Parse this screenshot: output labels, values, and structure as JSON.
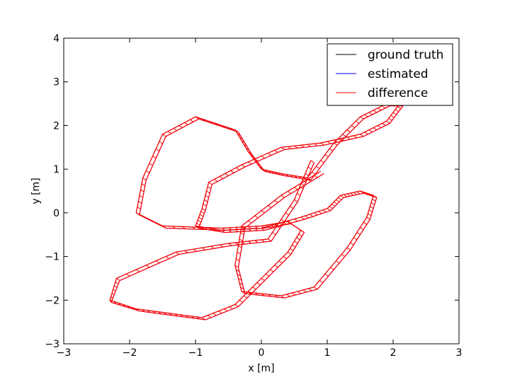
{
  "chart_data": {
    "type": "line",
    "title": "",
    "xlabel": "x [m]",
    "ylabel": "y [m]",
    "xlim": [
      -3,
      3
    ],
    "ylim": [
      -3,
      4
    ],
    "xticks": [
      -3,
      -2,
      -1,
      0,
      1,
      2,
      3
    ],
    "yticks": [
      -3,
      -2,
      -1,
      0,
      1,
      2,
      3,
      4
    ],
    "xtick_labels": [
      "−3",
      "−2",
      "−1",
      "0",
      "1",
      "2",
      "3"
    ],
    "ytick_labels": [
      "−3",
      "−2",
      "−1",
      "0",
      "1",
      "2",
      "3",
      "4"
    ],
    "grid": false,
    "legend_position": "top-right",
    "colors": {
      "ground_truth": "#000000",
      "estimated": "#0000ff",
      "difference": "#ff0000"
    },
    "series": [
      {
        "name": "ground truth",
        "x": [
          0.75,
          0.5,
          0.1,
          -0.5,
          -1.3,
          -2.2,
          -2.3,
          -1.9,
          -1.4,
          -0.9,
          -0.4,
          0.0,
          0.4,
          0.6,
          0.4,
          0.0,
          -0.6,
          -1.5,
          -1.9,
          -1.8,
          -1.5,
          -1.0,
          -0.4,
          -0.2,
          0.0,
          0.3,
          0.7,
          1.1,
          1.5,
          1.9,
          2.1,
          1.9,
          1.5,
          0.9,
          0.3,
          -0.3,
          -0.8,
          -0.9,
          -1.0,
          -0.6,
          0.0,
          0.6,
          1.0,
          1.2,
          1.5,
          1.7,
          1.6,
          1.3,
          0.8,
          0.3,
          -0.3,
          -0.4,
          -0.3,
          0.3,
          0.9
        ],
        "y": [
          1.2,
          0.3,
          -0.6,
          -0.7,
          -0.9,
          -1.5,
          -2.0,
          -2.2,
          -2.3,
          -2.4,
          -2.1,
          -1.5,
          -0.9,
          -0.4,
          -0.2,
          -0.3,
          -0.35,
          -0.3,
          0.0,
          0.8,
          1.8,
          2.2,
          1.9,
          1.4,
          1.0,
          0.9,
          0.8,
          1.6,
          2.2,
          2.5,
          2.5,
          2.1,
          1.8,
          1.6,
          1.5,
          1.1,
          0.7,
          0.1,
          -0.3,
          -0.4,
          -0.35,
          -0.1,
          0.1,
          0.4,
          0.5,
          0.4,
          -0.1,
          -0.8,
          -1.7,
          -1.9,
          -1.8,
          -1.2,
          -0.3,
          0.4,
          0.95
        ]
      },
      {
        "name": "estimated",
        "x": [
          0.8,
          0.55,
          0.15,
          -0.45,
          -1.25,
          -2.15,
          -2.28,
          -1.85,
          -1.35,
          -0.85,
          -0.35,
          0.05,
          0.45,
          0.65,
          0.45,
          0.05,
          -0.55,
          -1.45,
          -1.85,
          -1.75,
          -1.45,
          -0.95,
          -0.35,
          -0.15,
          0.05,
          0.35,
          0.75,
          1.15,
          1.55,
          1.95,
          2.15,
          1.95,
          1.55,
          0.95,
          0.35,
          -0.25,
          -0.75,
          -0.85,
          -0.95,
          -0.55,
          0.05,
          0.65,
          1.05,
          1.25,
          1.55,
          1.75,
          1.65,
          1.35,
          0.85,
          0.35,
          -0.25,
          -0.35,
          -0.25,
          0.35,
          0.95
        ],
        "y": [
          1.15,
          0.25,
          -0.65,
          -0.75,
          -0.95,
          -1.55,
          -2.05,
          -2.25,
          -2.35,
          -2.45,
          -2.15,
          -1.55,
          -0.95,
          -0.45,
          -0.25,
          -0.35,
          -0.4,
          -0.35,
          -0.05,
          0.75,
          1.75,
          2.15,
          1.85,
          1.35,
          0.95,
          0.85,
          0.75,
          1.55,
          2.15,
          2.45,
          2.45,
          2.05,
          1.75,
          1.55,
          1.45,
          1.05,
          0.65,
          0.05,
          -0.35,
          -0.45,
          -0.4,
          -0.15,
          0.05,
          0.35,
          0.45,
          0.35,
          -0.15,
          -0.85,
          -1.75,
          -1.95,
          -1.85,
          -1.25,
          -0.35,
          0.35,
          0.9
        ]
      }
    ],
    "difference": "segments connecting each ground truth point to its estimated point"
  },
  "legend": {
    "items": [
      {
        "label": "ground truth",
        "color": "#000000"
      },
      {
        "label": "estimated",
        "color": "#0000ff"
      },
      {
        "label": "difference",
        "color": "#ff0000"
      }
    ]
  }
}
